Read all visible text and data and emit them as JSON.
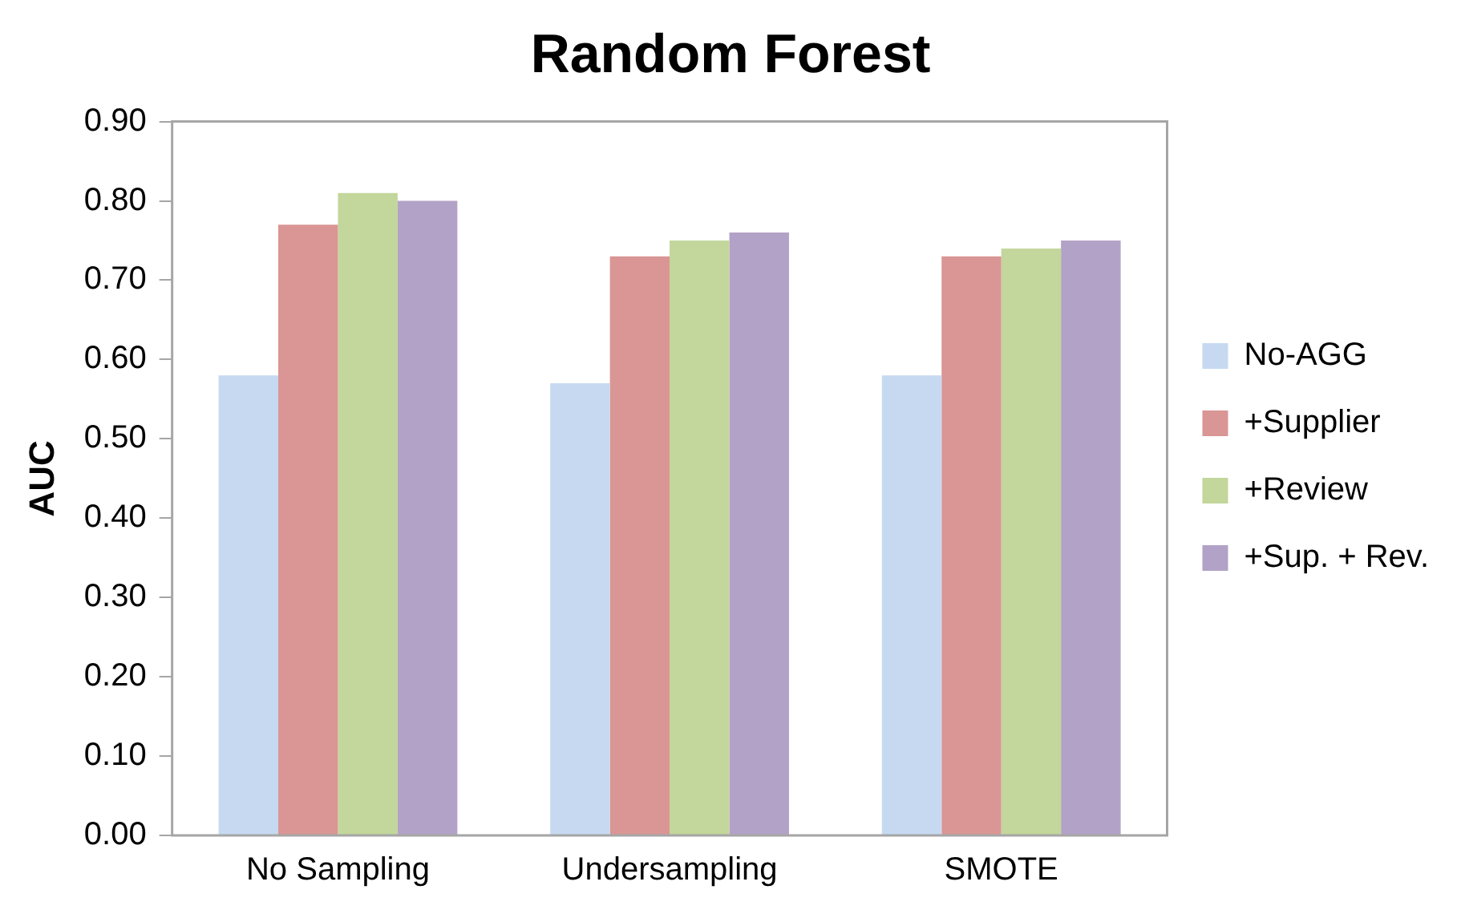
{
  "chart_data": {
    "type": "bar",
    "title": "Random Forest",
    "ylabel": "AUC",
    "categories": [
      "No Sampling",
      "Undersampling",
      "SMOTE"
    ],
    "series": [
      {
        "name": "No-AGG",
        "color": "#c6d9f1",
        "values": [
          0.58,
          0.57,
          0.58
        ]
      },
      {
        "name": "+Supplier",
        "color": "#d99694",
        "values": [
          0.77,
          0.73,
          0.73
        ]
      },
      {
        "name": "+Review",
        "color": "#c3d69b",
        "values": [
          0.81,
          0.75,
          0.74
        ]
      },
      {
        "name": "+Sup. + Rev.",
        "color": "#b3a2c7",
        "values": [
          0.8,
          0.76,
          0.75
        ]
      }
    ],
    "ylim": [
      0,
      0.9
    ],
    "yticks": [
      {
        "value": 0,
        "label": "0.00"
      },
      {
        "value": 0.1,
        "label": "0.10"
      },
      {
        "value": 0.2,
        "label": "0.20"
      },
      {
        "value": 0.3,
        "label": "0.30"
      },
      {
        "value": 0.4,
        "label": "0.40"
      },
      {
        "value": 0.5,
        "label": "0.50"
      },
      {
        "value": 0.6,
        "label": "0.60"
      },
      {
        "value": 0.7,
        "label": "0.70"
      },
      {
        "value": 0.8,
        "label": "0.80"
      },
      {
        "value": 0.9,
        "label": "0.90"
      }
    ],
    "grid": false,
    "legend": "right"
  }
}
